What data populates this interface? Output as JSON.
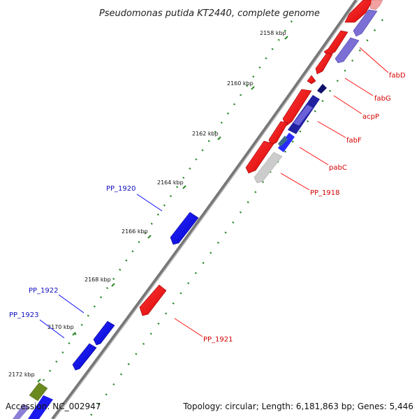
{
  "title": "Pseudomonas putida KT2440, complete genome",
  "accession": "Accession: NC_002947",
  "summary": "Topology: circular; Length: 6,181,863 bp; Genes: 5,446",
  "ticks": [
    {
      "label": "2158 kbp"
    },
    {
      "label": "2160 kbp"
    },
    {
      "label": "2162 kbp"
    },
    {
      "label": "2164 kbp"
    },
    {
      "label": "2166 kbp"
    },
    {
      "label": "2168 kbp"
    },
    {
      "label": "2170 kbp"
    },
    {
      "label": "2172 kbp"
    }
  ],
  "genes_right": [
    {
      "label": "fabD",
      "color": "#d40000"
    },
    {
      "label": "fabG",
      "color": "#d40000"
    },
    {
      "label": "acpP",
      "color": "#d40000"
    },
    {
      "label": "fabF",
      "color": "#d40000"
    },
    {
      "label": "pabC",
      "color": "#d40000"
    },
    {
      "label": "PP_1918",
      "color": "#d40000"
    },
    {
      "label": "PP_1921",
      "color": "#d40000"
    }
  ],
  "genes_left": [
    {
      "label": "PP_1920",
      "color": "#1010c0"
    },
    {
      "label": "PP_1922",
      "color": "#1010c0"
    },
    {
      "label": "PP_1923",
      "color": "#1010c0"
    }
  ],
  "colors": {
    "backbone": "#8a8a8a",
    "tick_dots": "#2a8a2a",
    "forward": "#ff0000",
    "reverse": "#0000ee",
    "purple": "#7b6fd6",
    "grey": "#cccccc",
    "navy": "#10106a"
  }
}
